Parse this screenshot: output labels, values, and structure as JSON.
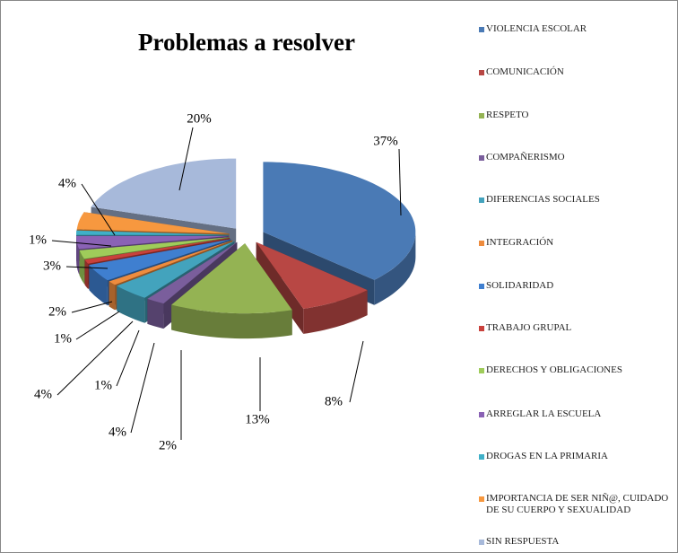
{
  "chart_data": {
    "type": "pie3d",
    "title": "Problemas a resolver",
    "categories": [
      "VIOLENCIA ESCOLAR",
      "COMUNICACIÓN",
      "RESPETO",
      "COMPAÑERISMO",
      "DIFERENCIAS SOCIALES",
      "INTEGRACIÓN",
      "SOLIDARIDAD",
      "TRABAJO GRUPAL",
      "DERECHOS Y OBLIGACIONES",
      "ARREGLAR LA ESCUELA",
      "DROGAS EN LA PRIMARIA",
      "IMPORTANCIA DE SER NIÑ@, CUIDADO DE SU CUERPO Y SEXUALIDAD",
      "SIN RESPUESTA"
    ],
    "values": [
      37,
      8,
      13,
      2,
      4,
      1,
      4,
      1,
      2,
      3,
      1,
      4,
      20
    ],
    "value_labels": [
      "37%",
      "8%",
      "13%",
      "2%",
      "4%",
      "1%",
      "4%",
      "1%",
      "2%",
      "3%",
      "1%",
      "4%",
      "20%"
    ],
    "colors": [
      "#4a7ab5",
      "#b84744",
      "#94b353",
      "#7a5e9c",
      "#43a3bd",
      "#ee8c3e",
      "#3f7fd0",
      "#c9413c",
      "#9fcc5a",
      "#8a62b5",
      "#3fb0c8",
      "#f7983f",
      "#a7b9da"
    ],
    "legend": "right"
  }
}
